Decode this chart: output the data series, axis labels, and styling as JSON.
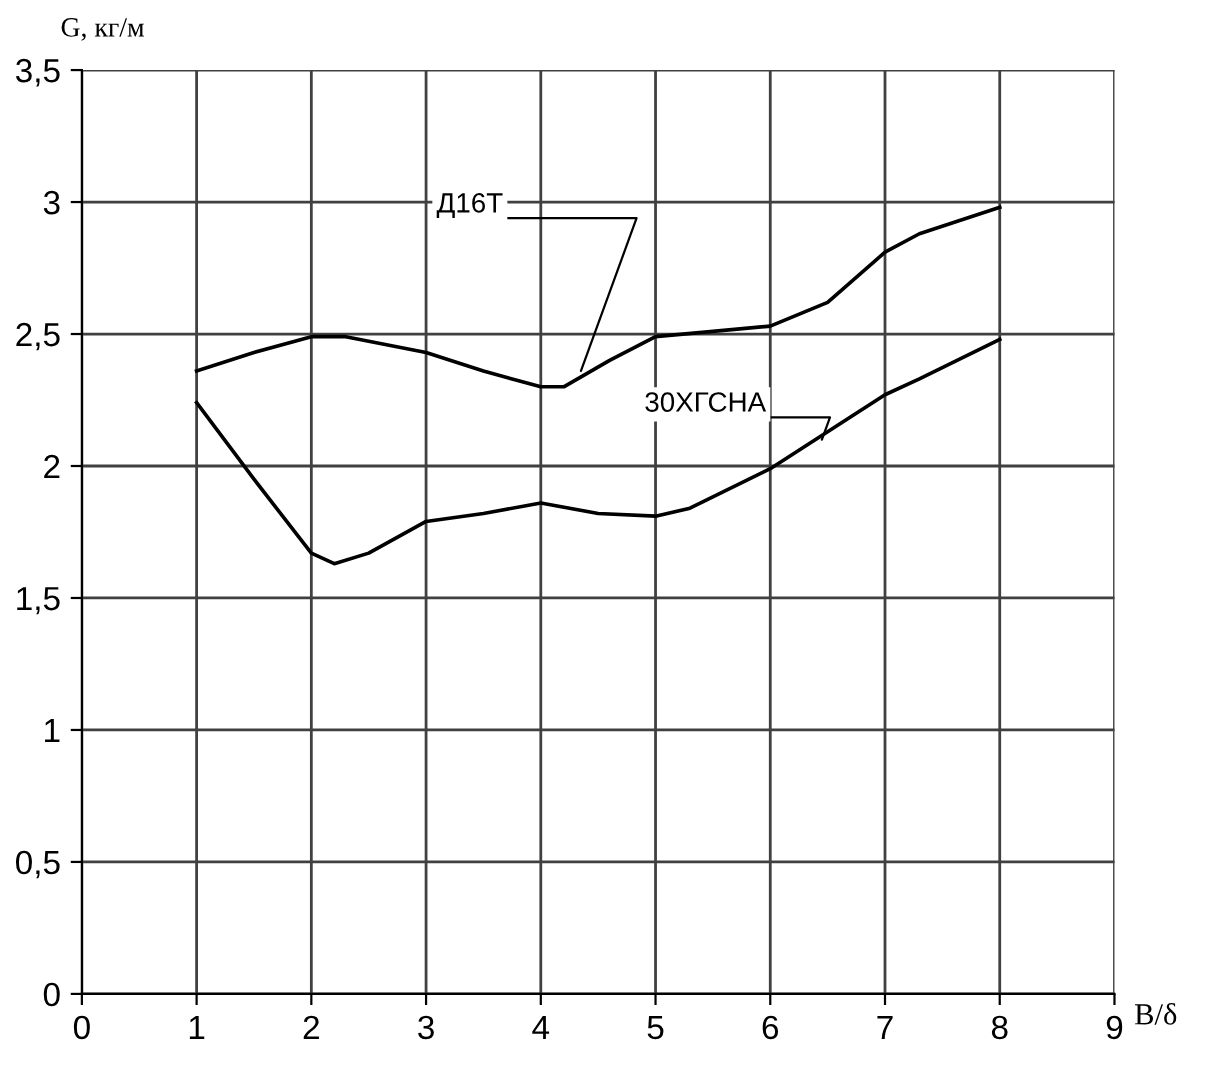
{
  "chart_data": {
    "type": "line",
    "xlabel": "B/δ",
    "ylabel": "G, кг/м",
    "xlim": [
      0,
      9
    ],
    "xticks": [
      0,
      1,
      2,
      3,
      4,
      5,
      6,
      7,
      8,
      9
    ],
    "ylim": [
      0,
      3.5
    ],
    "yticks": [
      0,
      {
        "value": 0.5,
        "label": "0,5"
      },
      1,
      {
        "value": 1.5,
        "label": "1,5"
      },
      2,
      {
        "value": 2.5,
        "label": "2,5"
      },
      3,
      {
        "value": 3.5,
        "label": "3,5"
      }
    ],
    "grid": true,
    "legend": false,
    "marker": "none",
    "line_style": "solid",
    "series": [
      {
        "color": "#000000",
        "x": [
          1,
          1.5,
          2,
          2.3,
          3,
          3.5,
          4,
          4.2,
          4.6,
          5,
          5.5,
          6,
          6.5,
          7,
          7.3,
          8
        ],
        "values": [
          2.36,
          2.43,
          2.49,
          2.49,
          2.43,
          2.36,
          2.3,
          2.3,
          2.4,
          2.49,
          2.51,
          2.53,
          2.62,
          2.81,
          2.88,
          2.98
        ]
      },
      {
        "color": "#000000",
        "x": [
          1,
          1.5,
          2,
          2.2,
          2.5,
          3,
          3.5,
          4,
          4.5,
          5,
          5.3,
          6,
          6.5,
          7,
          7.3,
          8
        ],
        "values": [
          2.24,
          1.95,
          1.67,
          1.63,
          1.67,
          1.79,
          1.82,
          1.86,
          1.82,
          1.81,
          1.84,
          1.99,
          2.13,
          2.27,
          2.33,
          2.48
        ]
      }
    ],
    "annotations": [
      {
        "text": "Д16Т",
        "x": 4.35,
        "y": 2.36
      },
      {
        "text": "30ХГСНА",
        "x": 6.45,
        "y": 2.1
      }
    ]
  }
}
